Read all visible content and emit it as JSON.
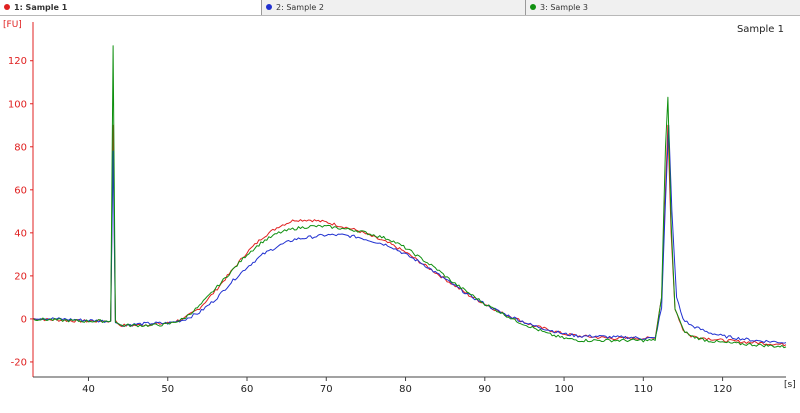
{
  "tabs": [
    {
      "label": "1: Sample 1",
      "color": "#e02020",
      "active": true
    },
    {
      "label": "2: Sample 2",
      "color": "#2030d0",
      "active": false
    },
    {
      "label": "3: Sample 3",
      "color": "#109010",
      "active": false
    }
  ],
  "chart_data": {
    "type": "line",
    "title": "Sample 1",
    "ylabel": "[FU]",
    "xlabel": "[s]",
    "xlim": [
      33,
      128
    ],
    "ylim": [
      -27,
      138
    ],
    "x_ticks": [
      40,
      50,
      60,
      70,
      80,
      90,
      100,
      110,
      120
    ],
    "y_ticks": [
      -20,
      0,
      20,
      40,
      60,
      80,
      100,
      120
    ],
    "grid": false,
    "axis_color": "#e02020",
    "series": [
      {
        "name": "1: Sample 1",
        "color": "#e02020",
        "points": [
          [
            33,
            0
          ],
          [
            36,
            -0.5
          ],
          [
            39,
            -1
          ],
          [
            42,
            -1
          ],
          [
            42.8,
            -1
          ],
          [
            43.1,
            90
          ],
          [
            43.4,
            -1
          ],
          [
            44,
            -3
          ],
          [
            46,
            -3
          ],
          [
            48,
            -2.5
          ],
          [
            50,
            -2
          ],
          [
            52,
            0
          ],
          [
            54,
            5
          ],
          [
            56,
            13
          ],
          [
            58,
            22
          ],
          [
            60,
            31
          ],
          [
            62,
            38
          ],
          [
            64,
            43
          ],
          [
            66,
            46
          ],
          [
            68,
            46
          ],
          [
            70,
            45
          ],
          [
            72,
            43
          ],
          [
            74,
            41
          ],
          [
            76,
            38
          ],
          [
            78,
            35
          ],
          [
            80,
            31
          ],
          [
            82,
            26
          ],
          [
            84,
            21
          ],
          [
            86,
            16
          ],
          [
            88,
            11
          ],
          [
            90,
            7
          ],
          [
            92,
            3
          ],
          [
            94,
            0
          ],
          [
            96,
            -3
          ],
          [
            98,
            -5
          ],
          [
            100,
            -7
          ],
          [
            102,
            -8
          ],
          [
            104,
            -8.5
          ],
          [
            106,
            -9
          ],
          [
            108,
            -9
          ],
          [
            110,
            -9
          ],
          [
            111.5,
            -9
          ],
          [
            112.3,
            10
          ],
          [
            112.8,
            60
          ],
          [
            113.1,
            90
          ],
          [
            113.5,
            40
          ],
          [
            114,
            5
          ],
          [
            115,
            -5
          ],
          [
            116,
            -8
          ],
          [
            118,
            -9
          ],
          [
            120,
            -10
          ],
          [
            124,
            -11
          ],
          [
            128,
            -12
          ]
        ]
      },
      {
        "name": "2: Sample 2",
        "color": "#2030d0",
        "points": [
          [
            33,
            0.5
          ],
          [
            36,
            0
          ],
          [
            39,
            -0.5
          ],
          [
            42,
            -1
          ],
          [
            42.8,
            -1
          ],
          [
            43.1,
            78
          ],
          [
            43.4,
            -1
          ],
          [
            44,
            -3
          ],
          [
            46,
            -2.5
          ],
          [
            48,
            -2
          ],
          [
            50,
            -2
          ],
          [
            52,
            -0.5
          ],
          [
            54,
            3
          ],
          [
            56,
            9
          ],
          [
            58,
            17
          ],
          [
            60,
            24
          ],
          [
            62,
            30
          ],
          [
            64,
            34
          ],
          [
            66,
            37
          ],
          [
            68,
            38
          ],
          [
            70,
            39
          ],
          [
            72,
            39
          ],
          [
            74,
            38
          ],
          [
            76,
            36
          ],
          [
            78,
            34
          ],
          [
            80,
            30
          ],
          [
            82,
            26
          ],
          [
            84,
            21
          ],
          [
            86,
            16
          ],
          [
            88,
            11
          ],
          [
            90,
            7
          ],
          [
            92,
            3
          ],
          [
            94,
            0
          ],
          [
            96,
            -3
          ],
          [
            98,
            -5
          ],
          [
            100,
            -7
          ],
          [
            102,
            -8
          ],
          [
            104,
            -8
          ],
          [
            106,
            -8.5
          ],
          [
            108,
            -8.5
          ],
          [
            110,
            -9
          ],
          [
            111.5,
            -9
          ],
          [
            112.3,
            5
          ],
          [
            112.8,
            55
          ],
          [
            113.2,
            90
          ],
          [
            113.6,
            50
          ],
          [
            114.2,
            10
          ],
          [
            115,
            0
          ],
          [
            116,
            -3
          ],
          [
            118,
            -6
          ],
          [
            120,
            -8
          ],
          [
            124,
            -10
          ],
          [
            128,
            -11
          ]
        ]
      },
      {
        "name": "3: Sample 3",
        "color": "#109010",
        "points": [
          [
            33,
            0
          ],
          [
            36,
            -0.5
          ],
          [
            39,
            -1
          ],
          [
            42,
            -1
          ],
          [
            42.8,
            -1
          ],
          [
            43.1,
            127
          ],
          [
            43.4,
            -1
          ],
          [
            44,
            -3
          ],
          [
            46,
            -3
          ],
          [
            48,
            -3
          ],
          [
            50,
            -2.5
          ],
          [
            52,
            0
          ],
          [
            54,
            6
          ],
          [
            56,
            14
          ],
          [
            58,
            22
          ],
          [
            60,
            30
          ],
          [
            62,
            36
          ],
          [
            64,
            40
          ],
          [
            66,
            42
          ],
          [
            68,
            43
          ],
          [
            70,
            43
          ],
          [
            72,
            42
          ],
          [
            74,
            41
          ],
          [
            76,
            39
          ],
          [
            78,
            37
          ],
          [
            80,
            33
          ],
          [
            82,
            28
          ],
          [
            84,
            23
          ],
          [
            86,
            17
          ],
          [
            88,
            12
          ],
          [
            90,
            7
          ],
          [
            92,
            3
          ],
          [
            94,
            -1
          ],
          [
            96,
            -4
          ],
          [
            98,
            -7
          ],
          [
            100,
            -9
          ],
          [
            102,
            -10
          ],
          [
            104,
            -10
          ],
          [
            106,
            -10
          ],
          [
            108,
            -10
          ],
          [
            110,
            -10
          ],
          [
            111.5,
            -10
          ],
          [
            112.3,
            10
          ],
          [
            112.8,
            80
          ],
          [
            113.1,
            103
          ],
          [
            113.5,
            45
          ],
          [
            114,
            5
          ],
          [
            115,
            -5
          ],
          [
            116,
            -8
          ],
          [
            118,
            -10
          ],
          [
            120,
            -11
          ],
          [
            124,
            -12
          ],
          [
            128,
            -13
          ]
        ]
      }
    ]
  }
}
